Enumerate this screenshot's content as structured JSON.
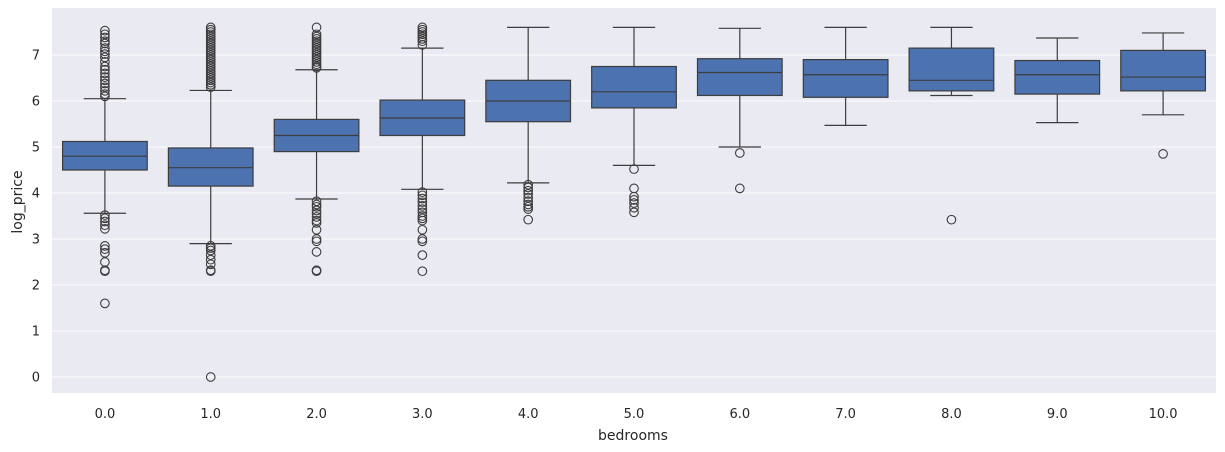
{
  "chart_data": {
    "type": "box",
    "title": "",
    "xlabel": "bedrooms",
    "ylabel": "log_price",
    "categories": [
      "0.0",
      "1.0",
      "2.0",
      "3.0",
      "4.0",
      "5.0",
      "6.0",
      "7.0",
      "8.0",
      "9.0",
      "10.0"
    ],
    "y_ticks": [
      "0",
      "1",
      "2",
      "3",
      "4",
      "5",
      "6",
      "7"
    ],
    "ylim": [
      -0.38,
      7.85
    ],
    "grid": true,
    "colors": {
      "background": "#eaeaf2",
      "box_fill": "#4c72b0",
      "line": "#3d3d3d",
      "grid": "#ffffff"
    },
    "boxes": [
      {
        "category": "0.0",
        "whisker_low": 3.56,
        "q1": 4.5,
        "median": 4.8,
        "q3": 5.12,
        "whisker_high": 6.05,
        "outliers": [
          7.53,
          7.45,
          7.38,
          7.3,
          7.25,
          7.15,
          7.08,
          7.02,
          6.95,
          6.85,
          6.75,
          6.68,
          6.6,
          6.52,
          6.45,
          6.38,
          6.3,
          6.22,
          6.15,
          6.1,
          3.52,
          3.45,
          3.38,
          3.3,
          3.22,
          2.85,
          2.78,
          2.7,
          2.5,
          2.32,
          2.3,
          1.6
        ]
      },
      {
        "category": "1.0",
        "whisker_low": 2.9,
        "q1": 4.15,
        "median": 4.55,
        "q3": 4.98,
        "whisker_high": 6.23,
        "outliers": [
          7.6,
          7.55,
          7.5,
          7.45,
          7.4,
          7.35,
          7.3,
          7.25,
          7.2,
          7.15,
          7.1,
          7.05,
          7.0,
          6.95,
          6.9,
          6.85,
          6.8,
          6.75,
          6.7,
          6.65,
          6.6,
          6.55,
          6.5,
          6.45,
          6.4,
          6.35,
          6.3,
          2.85,
          2.8,
          2.75,
          2.65,
          2.55,
          2.45,
          2.32,
          2.3,
          0.0
        ]
      },
      {
        "category": "2.0",
        "whisker_low": 3.87,
        "q1": 4.9,
        "median": 5.25,
        "q3": 5.6,
        "whisker_high": 6.68,
        "outliers": [
          7.6,
          7.45,
          7.4,
          7.35,
          7.3,
          7.25,
          7.2,
          7.15,
          7.1,
          7.05,
          7.0,
          6.95,
          6.9,
          6.85,
          6.8,
          6.75,
          6.72,
          3.82,
          3.75,
          3.7,
          3.62,
          3.55,
          3.48,
          3.4,
          3.35,
          3.2,
          3.0,
          2.95,
          2.72,
          2.32,
          2.3
        ]
      },
      {
        "category": "3.0",
        "whisker_low": 4.08,
        "q1": 5.25,
        "median": 5.63,
        "q3": 6.02,
        "whisker_high": 7.15,
        "outliers": [
          7.6,
          7.55,
          7.5,
          7.45,
          7.4,
          7.35,
          7.3,
          7.22,
          4.02,
          3.95,
          3.88,
          3.8,
          3.72,
          3.65,
          3.58,
          3.5,
          3.45,
          3.4,
          3.2,
          3.0,
          2.95,
          2.65,
          2.3
        ]
      },
      {
        "category": "4.0",
        "whisker_low": 4.22,
        "q1": 5.55,
        "median": 6.0,
        "q3": 6.45,
        "whisker_high": 7.6,
        "outliers": [
          4.18,
          4.12,
          4.05,
          3.98,
          3.9,
          3.82,
          3.75,
          3.7,
          3.65,
          3.42
        ]
      },
      {
        "category": "5.0",
        "whisker_low": 4.6,
        "q1": 5.85,
        "median": 6.2,
        "q3": 6.75,
        "whisker_high": 7.6,
        "outliers": [
          4.52,
          4.1,
          3.92,
          3.85,
          3.78,
          3.68,
          3.58
        ]
      },
      {
        "category": "6.0",
        "whisker_low": 5.0,
        "q1": 6.12,
        "median": 6.62,
        "q3": 6.92,
        "whisker_high": 7.58,
        "outliers": [
          4.87,
          4.1
        ]
      },
      {
        "category": "7.0",
        "whisker_low": 5.47,
        "q1": 6.08,
        "median": 6.57,
        "q3": 6.9,
        "whisker_high": 7.6,
        "outliers": []
      },
      {
        "category": "8.0",
        "whisker_low": 6.12,
        "q1": 6.22,
        "median": 6.45,
        "q3": 7.15,
        "whisker_high": 7.6,
        "outliers": [
          3.42
        ]
      },
      {
        "category": "9.0",
        "whisker_low": 5.53,
        "q1": 6.15,
        "median": 6.57,
        "q3": 6.88,
        "whisker_high": 7.37,
        "outliers": []
      },
      {
        "category": "10.0",
        "whisker_low": 5.7,
        "q1": 6.22,
        "median": 6.52,
        "q3": 7.1,
        "whisker_high": 7.48,
        "outliers": [
          4.85
        ]
      }
    ]
  }
}
